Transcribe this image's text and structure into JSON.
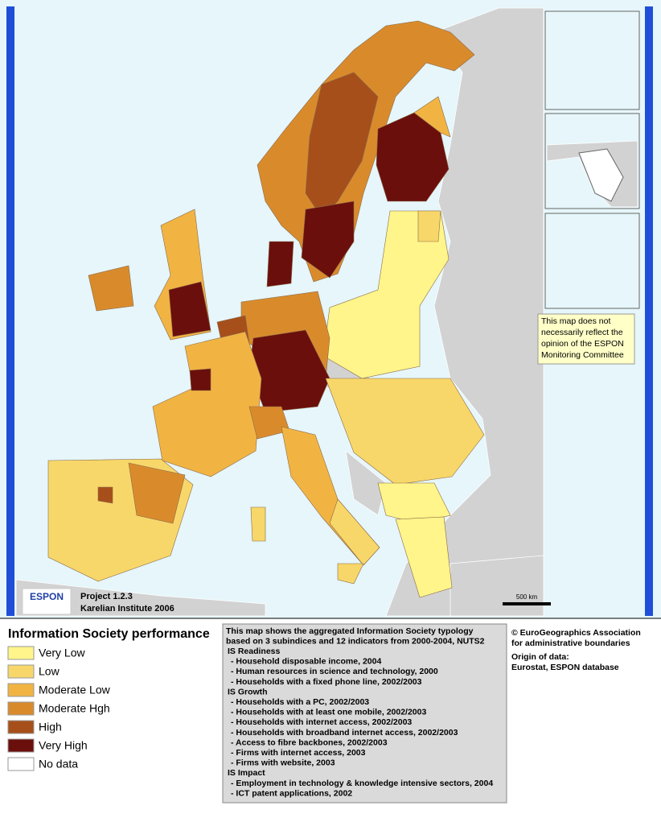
{
  "map": {
    "disclaimer": [
      "This map does not",
      "necessarily reflect the",
      "opinion of the ESPON",
      "Monitoring Committee"
    ],
    "scale_label": "500 km",
    "logo": "ESPON",
    "project": "Project 1.2.3",
    "institute": "Karelian Institute 2006"
  },
  "legend": {
    "title": "Information Society performance",
    "items": [
      {
        "label": "Very Low",
        "color": "#fff58a"
      },
      {
        "label": "Low",
        "color": "#f8d76a"
      },
      {
        "label": "Moderate Low",
        "color": "#f1b443"
      },
      {
        "label": "Moderate Hgh",
        "color": "#d98b2c"
      },
      {
        "label": "High",
        "color": "#a64f1b"
      },
      {
        "label": "Very High",
        "color": "#6b0f0c"
      },
      {
        "label": "No data",
        "color": "#ffffff"
      }
    ]
  },
  "description": {
    "intro": [
      "This map shows the aggregated Information Society typology",
      "based on 3 subindices and 12 indicators from 2000-2004, NUTS2"
    ],
    "groups": [
      {
        "title": "IS Readiness",
        "items": [
          "- Household disposable income, 2004",
          "- Human resources in science and technology, 2000",
          "- Households with a fixed phone line, 2002/2003"
        ]
      },
      {
        "title": "IS Growth",
        "items": [
          "- Households with a PC, 2002/2003",
          "- Households with at least one mobile, 2002/2003",
          "- Households with internet access, 2002/2003",
          "- Households with broadband internet access, 2002/2003",
          "- Access to fibre backbones, 2002/2003",
          "- Firms with internet access, 2003",
          "- Firms with website, 2003"
        ]
      },
      {
        "title": "IS Impact",
        "items": [
          "- Employment in technology & knowledge intensive sectors, 2004",
          "- ICT patent applications, 2002"
        ]
      }
    ]
  },
  "credits": {
    "copyright": [
      "© EuroGeographics Association",
      "for administrative boundaries"
    ],
    "origin_title": "Origin of data:",
    "origin": "Eurostat, ESPON database"
  }
}
